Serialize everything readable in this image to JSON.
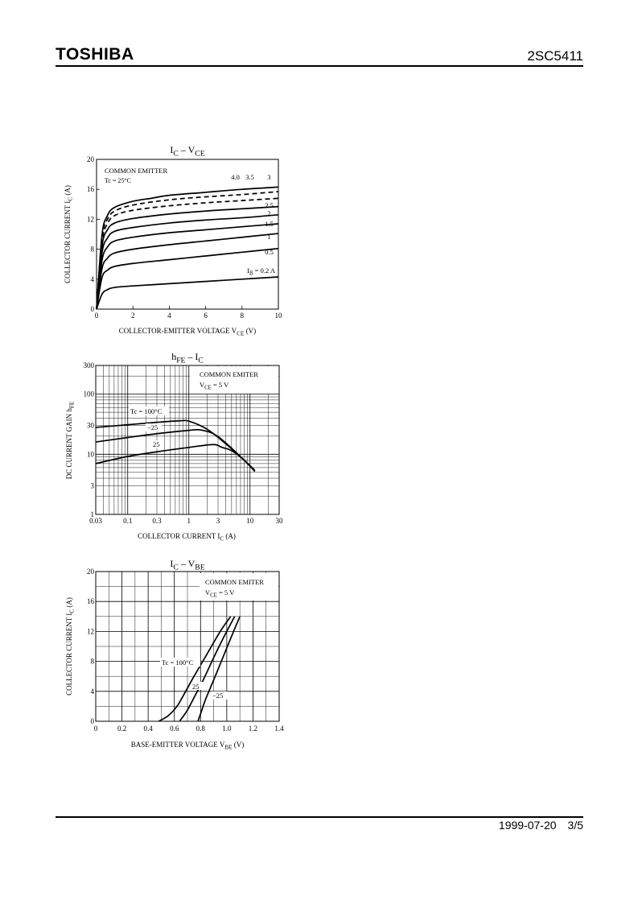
{
  "header": {
    "brand": "TOSHIBA",
    "part_number": "2SC5411"
  },
  "footer": {
    "date": "1999-07-20",
    "page": "3/5"
  },
  "chart_data": [
    {
      "id": "ic_vce",
      "type": "line",
      "title": "IC – VCE",
      "xlabel": "COLLECTOR-EMITTER VOLTAGE VCE (V)",
      "ylabel": "COLLECTOR CURRENT IC (A)",
      "xlim": [
        0,
        10
      ],
      "ylim": [
        0,
        20
      ],
      "xticks": [
        0,
        2,
        4,
        6,
        8,
        10
      ],
      "yticks": [
        0,
        4,
        8,
        12,
        16,
        20
      ],
      "grid": false,
      "annotations": [
        "COMMON EMITTER",
        "Tc = 25°C"
      ],
      "series": [
        {
          "name": "0.2 A",
          "style": "solid",
          "x": [
            0,
            0.3,
            0.6,
            1,
            2,
            4,
            6,
            8,
            10
          ],
          "y": [
            0,
            2.0,
            2.6,
            2.9,
            3.1,
            3.4,
            3.7,
            4.0,
            4.3
          ]
        },
        {
          "name": "0.5",
          "style": "solid",
          "x": [
            0,
            0.3,
            0.6,
            1,
            2,
            4,
            6,
            8,
            10
          ],
          "y": [
            0,
            4.2,
            5.2,
            5.7,
            6.1,
            6.6,
            7.1,
            7.6,
            8.1
          ]
        },
        {
          "name": "1",
          "style": "solid",
          "x": [
            0,
            0.3,
            0.6,
            1,
            2,
            4,
            6,
            8,
            10
          ],
          "y": [
            0,
            5.4,
            6.8,
            7.5,
            8.0,
            8.6,
            9.1,
            9.6,
            10.1
          ]
        },
        {
          "name": "1.5",
          "style": "solid",
          "x": [
            0,
            0.3,
            0.6,
            1,
            2,
            4,
            6,
            8,
            10
          ],
          "y": [
            0,
            6.5,
            8.3,
            9.1,
            9.6,
            10.2,
            10.6,
            11.0,
            11.4
          ]
        },
        {
          "name": "2",
          "style": "solid",
          "x": [
            0,
            0.3,
            0.6,
            1,
            2,
            4,
            6,
            8,
            10
          ],
          "y": [
            0,
            7.5,
            9.5,
            10.4,
            10.9,
            11.5,
            11.9,
            12.2,
            12.6
          ]
        },
        {
          "name": "2.5",
          "style": "solid",
          "x": [
            0,
            0.3,
            0.6,
            1,
            2,
            4,
            6,
            8,
            10
          ],
          "y": [
            0,
            8.4,
            10.6,
            11.5,
            12.1,
            12.7,
            13.1,
            13.4,
            13.7
          ]
        },
        {
          "name": "3",
          "style": "dashed",
          "x": [
            0,
            0.3,
            0.6,
            1,
            2,
            4,
            6,
            8,
            10
          ],
          "y": [
            0,
            9.0,
            11.4,
            12.5,
            13.2,
            13.8,
            14.2,
            14.5,
            14.8
          ]
        },
        {
          "name": "3.5",
          "style": "dashed",
          "x": [
            0,
            0.3,
            0.6,
            1,
            2,
            4,
            6,
            8,
            10
          ],
          "y": [
            0,
            9.5,
            12.0,
            13.1,
            13.9,
            14.6,
            15.0,
            15.3,
            15.7
          ]
        },
        {
          "name": "4.0",
          "style": "solid",
          "x": [
            0,
            0.3,
            0.6,
            1,
            2,
            3,
            4,
            6,
            8,
            10
          ],
          "y": [
            0,
            9.9,
            12.5,
            13.6,
            14.4,
            14.8,
            15.2,
            15.6,
            16.0,
            16.3
          ]
        }
      ],
      "curve_labels": [
        "4.0",
        "3.5",
        "3",
        "2.5",
        "2",
        "1.5",
        "1",
        "0.5"
      ],
      "base_label": "IB = 0.2 A"
    },
    {
      "id": "hfe_ic",
      "type": "line",
      "title": "hFE – IC",
      "xlabel": "COLLECTOR CURRENT IC (A)",
      "ylabel": "DC CURRENT GAIN hFE",
      "xscale": "log",
      "yscale": "log",
      "xlim": [
        0.03,
        30
      ],
      "ylim": [
        1,
        300
      ],
      "xtick_labels": [
        "0.03",
        "0.1",
        "0.3",
        "1",
        "3",
        "10",
        "30"
      ],
      "ytick_labels": [
        "1",
        "3",
        "10",
        "30",
        "100",
        "300"
      ],
      "grid": true,
      "annotations": [
        "COMMON EMITER",
        "VCE = 5 V"
      ],
      "series": [
        {
          "name": "Tc = 100°C",
          "x": [
            0.03,
            0.1,
            0.3,
            0.7,
            1.0,
            2,
            4,
            8,
            12
          ],
          "y": [
            28,
            31,
            34,
            36,
            35.5,
            26,
            15,
            8,
            5.4
          ]
        },
        {
          "name": "−25",
          "x": [
            0.03,
            0.1,
            0.3,
            1.0,
            1.5,
            2.5,
            4,
            8,
            12
          ],
          "y": [
            16,
            19,
            22,
            25,
            25.5,
            22,
            15.5,
            8,
            5.2
          ]
        },
        {
          "name": "25",
          "x": [
            0.03,
            0.1,
            0.3,
            1.0,
            2.5,
            3.5,
            5,
            8,
            12
          ],
          "y": [
            7,
            9.2,
            11,
            13,
            14.5,
            13,
            11.5,
            8,
            5.2
          ]
        }
      ]
    },
    {
      "id": "ic_vbe",
      "type": "line",
      "title": "IC – VBE",
      "xlabel": "BASE-EMITTER VOLTAGE VBE (V)",
      "ylabel": "COLLECTOR CURRENT IC (A)",
      "xlim": [
        0,
        1.4
      ],
      "ylim": [
        0,
        20
      ],
      "xticks": [
        0,
        0.2,
        0.4,
        0.6,
        0.8,
        1.0,
        1.2,
        1.4
      ],
      "yticks": [
        0,
        4,
        8,
        12,
        16,
        20
      ],
      "grid": true,
      "annotations": [
        "COMMON EMITER",
        "VCE = 5 V"
      ],
      "series": [
        {
          "name": "Tc = 100°C",
          "x": [
            0.48,
            0.55,
            0.62,
            0.68,
            0.75,
            0.85,
            0.95,
            1.03
          ],
          "y": [
            0,
            0.7,
            2.0,
            3.8,
            6.0,
            9.0,
            12.0,
            14.0
          ]
        },
        {
          "name": "25",
          "x": [
            0.64,
            0.7,
            0.76,
            0.82,
            0.9,
            0.97,
            1.06
          ],
          "y": [
            0,
            1.5,
            3.5,
            5.5,
            8.5,
            11.0,
            14.0
          ]
        },
        {
          "name": "−25",
          "x": [
            0.78,
            0.8,
            0.84,
            0.9,
            0.97,
            1.04,
            1.1
          ],
          "y": [
            0,
            1.0,
            3.0,
            5.5,
            8.5,
            11.5,
            14.0
          ]
        }
      ]
    }
  ]
}
